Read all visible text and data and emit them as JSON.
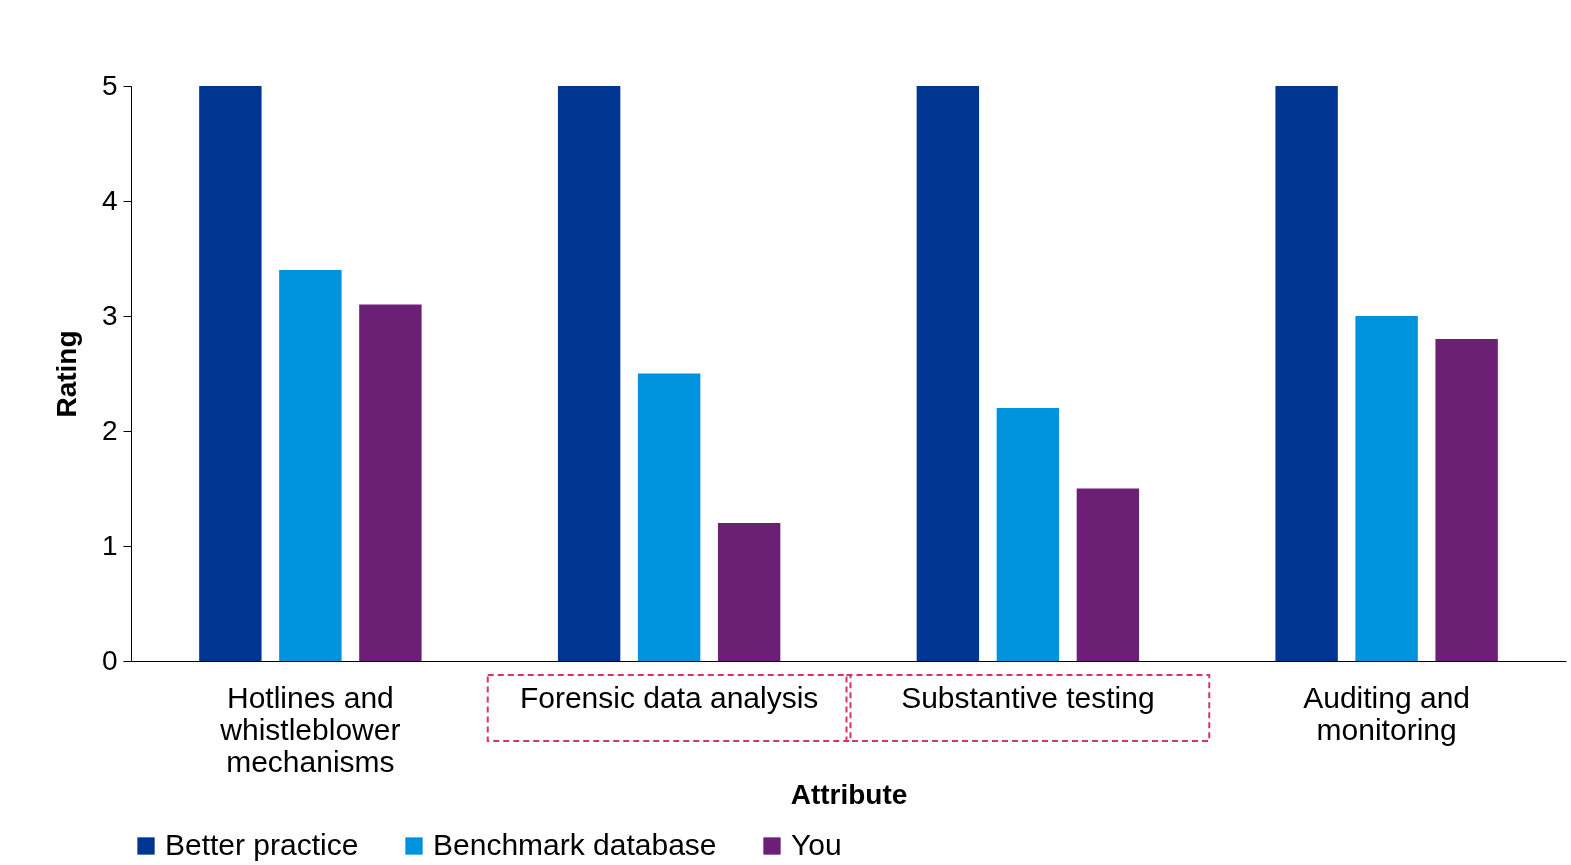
{
  "chart_data": {
    "type": "bar",
    "xlabel": "Attribute",
    "ylabel": "Rating",
    "categories": [
      "Hotlines and whistleblower mechanisms",
      "Forensic data analysis",
      "Substantive testing",
      "Auditing and monitoring"
    ],
    "series": [
      {
        "name": "Better practice",
        "color": "#003591",
        "values": [
          5,
          5,
          5,
          5
        ]
      },
      {
        "name": "Benchmark database",
        "color": "#0093dd",
        "values": [
          3.4,
          2.5,
          2.2,
          3.0
        ]
      },
      {
        "name": "You",
        "color": "#6c2075",
        "values": [
          3.1,
          1.2,
          1.5,
          2.8
        ]
      }
    ],
    "ylim": [
      0,
      5
    ],
    "yticks": [
      0,
      1,
      2,
      3,
      4,
      5
    ],
    "grid": false,
    "legend": "bottom"
  }
}
